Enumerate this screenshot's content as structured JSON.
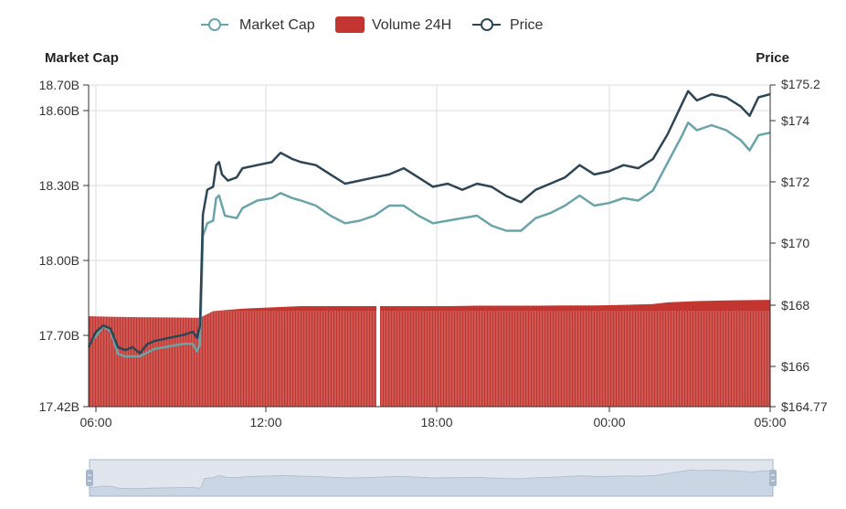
{
  "chart_data": {
    "type": "line+bar",
    "legend": [
      {
        "name": "Market Cap",
        "kind": "line",
        "color": "#6aa3a8"
      },
      {
        "name": "Volume 24H",
        "kind": "bar",
        "color": "#c23531"
      },
      {
        "name": "Price",
        "kind": "line",
        "color": "#2f4554"
      }
    ],
    "y_left": {
      "label": "Market Cap",
      "ticks": [
        "18.70B",
        "18.60B",
        "18.30B",
        "18.00B",
        "17.70B",
        "17.42B"
      ],
      "min": 17.42,
      "max": 18.7
    },
    "y_right": {
      "label": "Price",
      "ticks": [
        "$175.2",
        "$174",
        "$172",
        "$170",
        "$168",
        "$166",
        "$164.77"
      ],
      "min": 164.77,
      "max": 175.2
    },
    "x_ticks": [
      "06:00",
      "12:00",
      "18:00",
      "00:00",
      "05:00"
    ],
    "x_range_hours": [
      5.75,
      29
    ],
    "price_series": [
      [
        5.75,
        166.7
      ],
      [
        6.0,
        167.2
      ],
      [
        6.25,
        167.4
      ],
      [
        6.5,
        167.3
      ],
      [
        6.75,
        166.7
      ],
      [
        7.0,
        166.6
      ],
      [
        7.25,
        166.7
      ],
      [
        7.5,
        166.5
      ],
      [
        7.75,
        166.8
      ],
      [
        8.0,
        166.9
      ],
      [
        8.5,
        167.0
      ],
      [
        9.0,
        167.1
      ],
      [
        9.3,
        167.2
      ],
      [
        9.45,
        167.0
      ],
      [
        9.55,
        167.4
      ],
      [
        9.65,
        171.0
      ],
      [
        9.8,
        171.8
      ],
      [
        10.0,
        171.9
      ],
      [
        10.1,
        172.6
      ],
      [
        10.2,
        172.7
      ],
      [
        10.3,
        172.3
      ],
      [
        10.5,
        172.1
      ],
      [
        10.8,
        172.2
      ],
      [
        11.0,
        172.5
      ],
      [
        11.5,
        172.6
      ],
      [
        12.0,
        172.7
      ],
      [
        12.3,
        173.0
      ],
      [
        12.7,
        172.8
      ],
      [
        13.0,
        172.7
      ],
      [
        13.5,
        172.6
      ],
      [
        14.0,
        172.3
      ],
      [
        14.5,
        172.0
      ],
      [
        15.0,
        172.1
      ],
      [
        15.5,
        172.2
      ],
      [
        16.0,
        172.3
      ],
      [
        16.5,
        172.5
      ],
      [
        17.0,
        172.2
      ],
      [
        17.5,
        171.9
      ],
      [
        18.0,
        172.0
      ],
      [
        18.5,
        171.8
      ],
      [
        19.0,
        172.0
      ],
      [
        19.5,
        171.9
      ],
      [
        20.0,
        171.6
      ],
      [
        20.5,
        171.4
      ],
      [
        21.0,
        171.8
      ],
      [
        21.5,
        172.0
      ],
      [
        22.0,
        172.2
      ],
      [
        22.5,
        172.6
      ],
      [
        23.0,
        172.3
      ],
      [
        23.5,
        172.4
      ],
      [
        24.0,
        172.6
      ],
      [
        24.5,
        172.5
      ],
      [
        25.0,
        172.8
      ],
      [
        25.5,
        173.6
      ],
      [
        26.0,
        174.6
      ],
      [
        26.2,
        175.0
      ],
      [
        26.5,
        174.7
      ],
      [
        27.0,
        174.9
      ],
      [
        27.5,
        174.8
      ],
      [
        28.0,
        174.5
      ],
      [
        28.3,
        174.2
      ],
      [
        28.6,
        174.8
      ],
      [
        29.0,
        174.9
      ]
    ],
    "market_cap_series": [
      [
        5.75,
        17.67
      ],
      [
        6.0,
        17.7
      ],
      [
        6.25,
        17.74
      ],
      [
        6.5,
        17.72
      ],
      [
        6.75,
        17.63
      ],
      [
        7.0,
        17.62
      ],
      [
        7.5,
        17.62
      ],
      [
        8.0,
        17.65
      ],
      [
        8.5,
        17.66
      ],
      [
        9.0,
        17.67
      ],
      [
        9.3,
        17.67
      ],
      [
        9.45,
        17.64
      ],
      [
        9.55,
        17.67
      ],
      [
        9.65,
        18.1
      ],
      [
        9.8,
        18.15
      ],
      [
        10.0,
        18.16
      ],
      [
        10.1,
        18.25
      ],
      [
        10.2,
        18.26
      ],
      [
        10.4,
        18.18
      ],
      [
        10.8,
        18.17
      ],
      [
        11.0,
        18.21
      ],
      [
        11.5,
        18.24
      ],
      [
        12.0,
        18.25
      ],
      [
        12.3,
        18.27
      ],
      [
        12.7,
        18.25
      ],
      [
        13.0,
        18.24
      ],
      [
        13.5,
        18.22
      ],
      [
        14.0,
        18.18
      ],
      [
        14.5,
        18.15
      ],
      [
        15.0,
        18.16
      ],
      [
        15.5,
        18.18
      ],
      [
        16.0,
        18.22
      ],
      [
        16.5,
        18.22
      ],
      [
        17.0,
        18.18
      ],
      [
        17.5,
        18.15
      ],
      [
        18.0,
        18.16
      ],
      [
        18.5,
        18.17
      ],
      [
        19.0,
        18.18
      ],
      [
        19.5,
        18.14
      ],
      [
        20.0,
        18.12
      ],
      [
        20.5,
        18.12
      ],
      [
        21.0,
        18.17
      ],
      [
        21.5,
        18.19
      ],
      [
        22.0,
        18.22
      ],
      [
        22.5,
        18.26
      ],
      [
        23.0,
        18.22
      ],
      [
        23.5,
        18.23
      ],
      [
        24.0,
        18.25
      ],
      [
        24.5,
        18.24
      ],
      [
        25.0,
        18.28
      ],
      [
        25.5,
        18.39
      ],
      [
        26.0,
        18.5
      ],
      [
        26.2,
        18.55
      ],
      [
        26.5,
        18.52
      ],
      [
        27.0,
        18.54
      ],
      [
        27.5,
        18.52
      ],
      [
        28.0,
        18.48
      ],
      [
        28.3,
        18.44
      ],
      [
        28.6,
        18.5
      ],
      [
        29.0,
        18.51
      ]
    ],
    "volume_series": [
      [
        5.75,
        17.78
      ],
      [
        6.5,
        17.778
      ],
      [
        7.5,
        17.776
      ],
      [
        8.5,
        17.775
      ],
      [
        9.5,
        17.774
      ],
      [
        9.65,
        17.78
      ],
      [
        10.0,
        17.8
      ],
      [
        11.0,
        17.81
      ],
      [
        12.0,
        17.815
      ],
      [
        13.0,
        17.82
      ],
      [
        14.0,
        17.82
      ],
      [
        15.0,
        17.82
      ],
      [
        16.0,
        17.82
      ],
      [
        17.0,
        17.82
      ],
      [
        18.0,
        17.82
      ],
      [
        19.0,
        17.822
      ],
      [
        20.0,
        17.822
      ],
      [
        21.0,
        17.822
      ],
      [
        22.0,
        17.823
      ],
      [
        23.0,
        17.823
      ],
      [
        24.0,
        17.825
      ],
      [
        25.0,
        17.828
      ],
      [
        25.5,
        17.835
      ],
      [
        26.5,
        17.84
      ],
      [
        27.5,
        17.843
      ],
      [
        29.0,
        17.845
      ]
    ]
  },
  "colors": {
    "market_cap": "#6aa3a8",
    "volume": "#c23531",
    "price": "#2f4554",
    "grid": "#dddddd",
    "axis": "#333333",
    "zoom_fill": "#d7e0ec"
  }
}
